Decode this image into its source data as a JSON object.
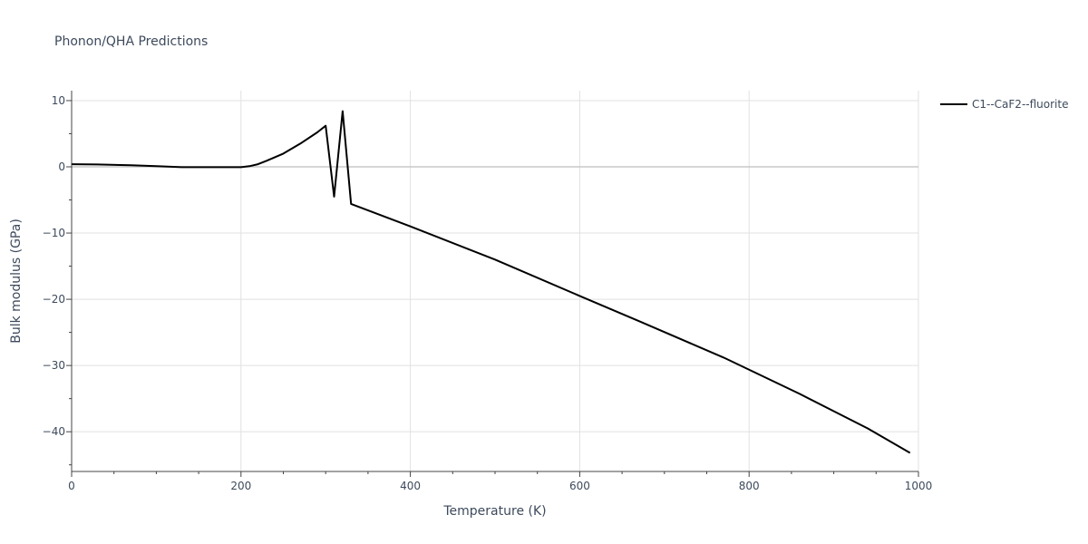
{
  "chart_data": {
    "type": "line",
    "title": "Phonon/QHA Predictions",
    "xlabel": "Temperature (K)",
    "ylabel": "Bulk modulus (GPa)",
    "xlim": [
      0,
      1000
    ],
    "ylim": [
      -46,
      11.5
    ],
    "x_ticks": [
      0,
      200,
      400,
      600,
      800,
      1000
    ],
    "y_ticks": [
      10,
      0,
      -10,
      -20,
      -30,
      -40
    ],
    "x_tick_labels": [
      "0",
      "200",
      "400",
      "600",
      "800",
      "1000"
    ],
    "y_tick_labels": [
      "10",
      "0",
      "−10",
      "−20",
      "−30",
      "−40"
    ],
    "grid": true,
    "legend_position": "top-right",
    "series": [
      {
        "name": "C1--CaF2--fluorite",
        "color": "#000000",
        "x": [
          0,
          30,
          70,
          100,
          130,
          160,
          200,
          210,
          220,
          230,
          250,
          270,
          290,
          300,
          310,
          320,
          330,
          400,
          500,
          600,
          670,
          770,
          860,
          940,
          990
        ],
        "y": [
          0.4,
          0.35,
          0.25,
          0.1,
          -0.05,
          -0.05,
          -0.05,
          0.1,
          0.4,
          0.9,
          2.0,
          3.5,
          5.2,
          6.2,
          -4.5,
          8.4,
          -5.6,
          -9.0,
          -14.0,
          -19.5,
          -23.3,
          -28.8,
          -34.3,
          -39.5,
          -43.2
        ]
      }
    ]
  }
}
